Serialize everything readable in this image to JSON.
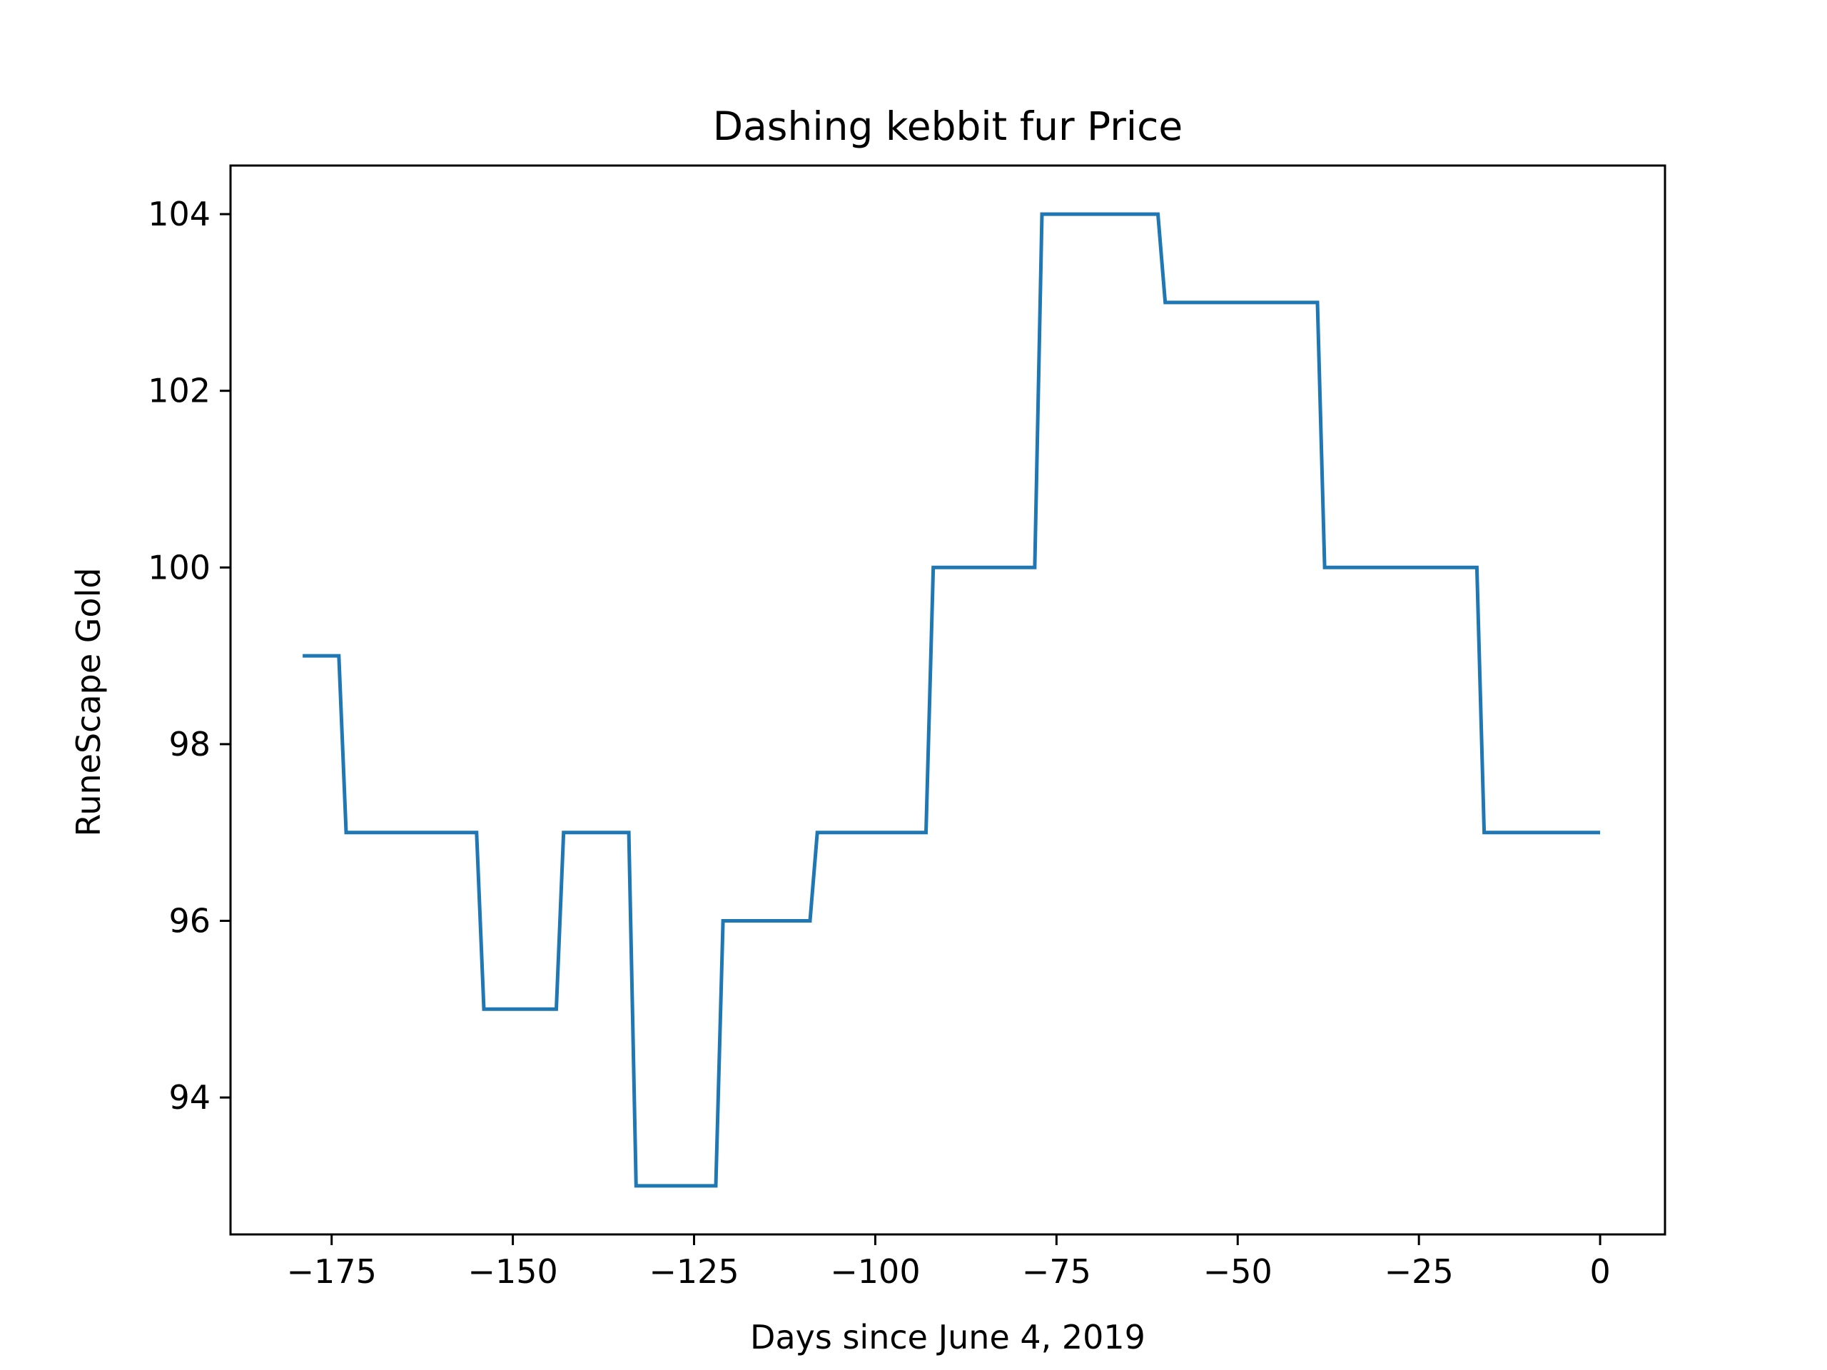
{
  "chart_data": {
    "type": "line",
    "title": "Dashing kebbit fur Price",
    "xlabel": "Days since June 4, 2019",
    "ylabel": "RuneScape Gold",
    "xlim": [
      -188.95,
      8.95
    ],
    "ylim": [
      92.45,
      104.55
    ],
    "xticks": [
      -175,
      -150,
      -125,
      -100,
      -75,
      -50,
      -25,
      0
    ],
    "xtick_labels": [
      "−175",
      "−150",
      "−125",
      "−100",
      "−75",
      "−50",
      "−25",
      "0"
    ],
    "yticks": [
      94,
      96,
      98,
      100,
      102,
      104
    ],
    "ytick_labels": [
      "94",
      "96",
      "98",
      "100",
      "102",
      "104"
    ],
    "grid": false,
    "line_color": "#1f77b4",
    "series": [
      {
        "x": [
          -179,
          -174,
          -173,
          -155,
          -154,
          -144,
          -143,
          -134,
          -133,
          -122,
          -121,
          -109,
          -108,
          -93,
          -92,
          -78,
          -77,
          -61,
          -60,
          -39,
          -38,
          -17,
          -16,
          0
        ],
        "y": [
          99,
          99,
          97,
          97,
          95,
          95,
          97,
          97,
          93,
          93,
          96,
          96,
          97,
          97,
          100,
          100,
          104,
          104,
          103,
          103,
          100,
          100,
          97,
          97
        ]
      }
    ]
  }
}
